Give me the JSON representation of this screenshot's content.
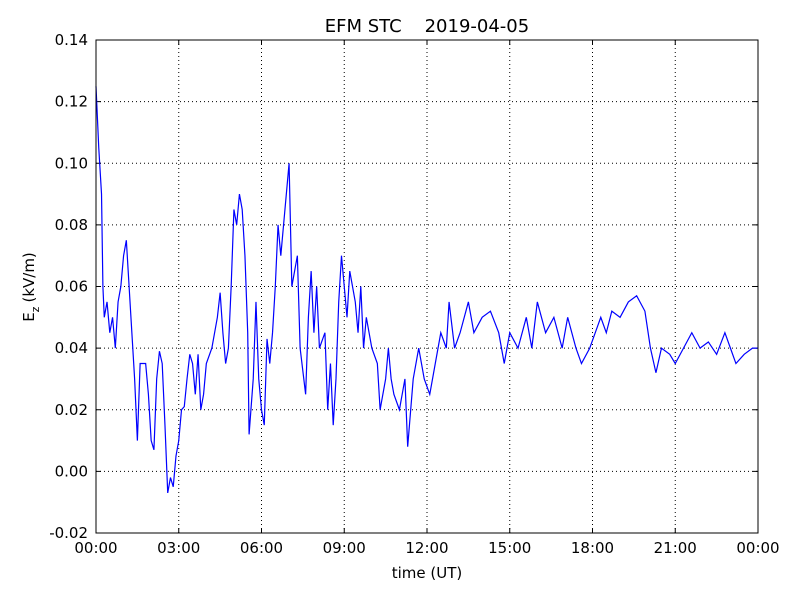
{
  "chart_data": {
    "type": "line",
    "title": "EFM STC    2019-04-05",
    "xlabel": "time (UT)",
    "ylabel": {
      "symbol": "E",
      "subscript": "z",
      "unit": "(kV/m)"
    },
    "xlim": [
      0,
      24
    ],
    "xticks": [
      {
        "value": 0,
        "label": "00:00"
      },
      {
        "value": 3,
        "label": "03:00"
      },
      {
        "value": 6,
        "label": "06:00"
      },
      {
        "value": 9,
        "label": "09:00"
      },
      {
        "value": 12,
        "label": "12:00"
      },
      {
        "value": 15,
        "label": "15:00"
      },
      {
        "value": 18,
        "label": "18:00"
      },
      {
        "value": 21,
        "label": "21:00"
      },
      {
        "value": 24,
        "label": "00:00"
      }
    ],
    "ylim": [
      -0.02,
      0.14
    ],
    "yticks": [
      -0.02,
      {
        "value": 0,
        "label": "0.00"
      },
      0.02,
      0.04,
      0.06,
      0.08,
      {
        "value": 0.1,
        "label": "0.10"
      },
      0.12,
      0.14
    ],
    "grid": true,
    "series": [
      {
        "color": "#0000ff",
        "x": [
          0,
          0.1,
          0.2,
          0.25,
          0.3,
          0.4,
          0.5,
          0.6,
          0.7,
          0.8,
          0.9,
          1.0,
          1.1,
          1.2,
          1.3,
          1.4,
          1.5,
          1.6,
          1.8,
          1.9,
          2.0,
          2.1,
          2.2,
          2.3,
          2.4,
          2.5,
          2.6,
          2.7,
          2.8,
          2.9,
          3.0,
          3.1,
          3.2,
          3.3,
          3.4,
          3.5,
          3.6,
          3.7,
          3.8,
          3.9,
          4.0,
          4.2,
          4.4,
          4.5,
          4.6,
          4.7,
          4.8,
          4.9,
          5.0,
          5.1,
          5.2,
          5.3,
          5.4,
          5.5,
          5.55,
          5.7,
          5.8,
          5.9,
          6.0,
          6.1,
          6.2,
          6.3,
          6.4,
          6.5,
          6.6,
          6.7,
          6.9,
          7.0,
          7.1,
          7.3,
          7.4,
          7.6,
          7.7,
          7.8,
          7.9,
          8.0,
          8.1,
          8.3,
          8.4,
          8.5,
          8.6,
          8.7,
          8.8,
          8.9,
          9.0,
          9.1,
          9.2,
          9.4,
          9.5,
          9.6,
          9.7,
          9.8,
          10.0,
          10.2,
          10.3,
          10.5,
          10.6,
          10.7,
          10.8,
          11.0,
          11.2,
          11.3,
          11.5,
          11.7,
          11.9,
          12.1,
          12.3,
          12.5,
          12.7,
          12.8,
          13.0,
          13.2,
          13.5,
          13.7,
          14.0,
          14.3,
          14.6,
          14.8,
          15.0,
          15.3,
          15.6,
          15.8,
          16.0,
          16.3,
          16.6,
          16.9,
          17.1,
          17.4,
          17.6,
          17.9,
          18.1,
          18.3,
          18.5,
          18.7,
          19.0,
          19.3,
          19.6,
          19.9,
          20.1,
          20.3,
          20.5,
          20.8,
          21.0,
          21.3,
          21.6,
          21.9,
          22.2,
          22.5,
          22.8,
          23.0,
          23.2,
          23.5,
          23.8,
          24.0
        ],
        "values": [
          0.125,
          0.105,
          0.09,
          0.06,
          0.05,
          0.055,
          0.045,
          0.05,
          0.04,
          0.055,
          0.06,
          0.07,
          0.075,
          0.06,
          0.045,
          0.03,
          0.01,
          0.035,
          0.035,
          0.025,
          0.01,
          0.007,
          0.03,
          0.039,
          0.035,
          0.015,
          -0.007,
          -0.002,
          -0.005,
          0.005,
          0.01,
          0.02,
          0.021,
          0.03,
          0.038,
          0.035,
          0.025,
          0.038,
          0.02,
          0.025,
          0.035,
          0.04,
          0.05,
          0.058,
          0.045,
          0.035,
          0.04,
          0.06,
          0.085,
          0.08,
          0.09,
          0.085,
          0.07,
          0.045,
          0.012,
          0.03,
          0.055,
          0.03,
          0.02,
          0.015,
          0.043,
          0.035,
          0.045,
          0.06,
          0.08,
          0.07,
          0.09,
          0.1,
          0.06,
          0.07,
          0.04,
          0.025,
          0.05,
          0.065,
          0.045,
          0.06,
          0.04,
          0.045,
          0.02,
          0.035,
          0.015,
          0.03,
          0.055,
          0.07,
          0.06,
          0.05,
          0.065,
          0.055,
          0.045,
          0.06,
          0.04,
          0.05,
          0.04,
          0.035,
          0.02,
          0.03,
          0.04,
          0.03,
          0.025,
          0.02,
          0.03,
          0.008,
          0.03,
          0.04,
          0.03,
          0.025,
          0.035,
          0.045,
          0.04,
          0.055,
          0.04,
          0.045,
          0.055,
          0.045,
          0.05,
          0.052,
          0.045,
          0.035,
          0.045,
          0.04,
          0.05,
          0.04,
          0.055,
          0.045,
          0.05,
          0.04,
          0.05,
          0.04,
          0.035,
          0.04,
          0.045,
          0.05,
          0.045,
          0.052,
          0.05,
          0.055,
          0.057,
          0.052,
          0.04,
          0.032,
          0.04,
          0.038,
          0.035,
          0.04,
          0.045,
          0.04,
          0.042,
          0.038,
          0.045,
          0.04,
          0.035,
          0.038,
          0.04,
          0.04
        ]
      }
    ]
  }
}
